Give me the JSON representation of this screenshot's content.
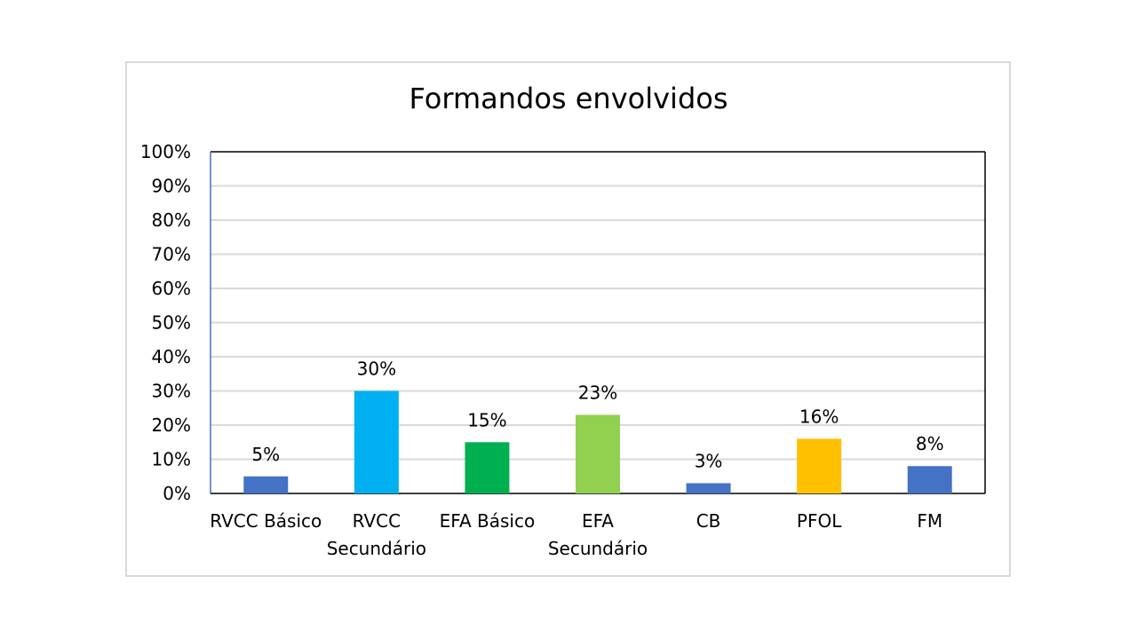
{
  "chart_data": {
    "type": "bar",
    "title": "Formandos envolvidos",
    "xlabel": "",
    "ylabel": "",
    "ylim": [
      0,
      100
    ],
    "y_ticks": [
      "0%",
      "10%",
      "20%",
      "30%",
      "40%",
      "50%",
      "60%",
      "70%",
      "80%",
      "90%",
      "100%"
    ],
    "grid": true,
    "legend": "none",
    "categories": [
      [
        "RVCC Básico"
      ],
      [
        "RVCC",
        "Secundário"
      ],
      [
        "EFA Básico"
      ],
      [
        "EFA",
        "Secundário"
      ],
      [
        "CB"
      ],
      [
        "PFOL"
      ],
      [
        "FM"
      ]
    ],
    "values": [
      5,
      30,
      15,
      23,
      3,
      16,
      8
    ],
    "data_labels": [
      "5%",
      "30%",
      "15%",
      "23%",
      "3%",
      "16%",
      "8%"
    ],
    "colors": [
      "#4472c4",
      "#00b0f0",
      "#00b050",
      "#92d050",
      "#4472c4",
      "#ffc000",
      "#4472c4"
    ]
  }
}
